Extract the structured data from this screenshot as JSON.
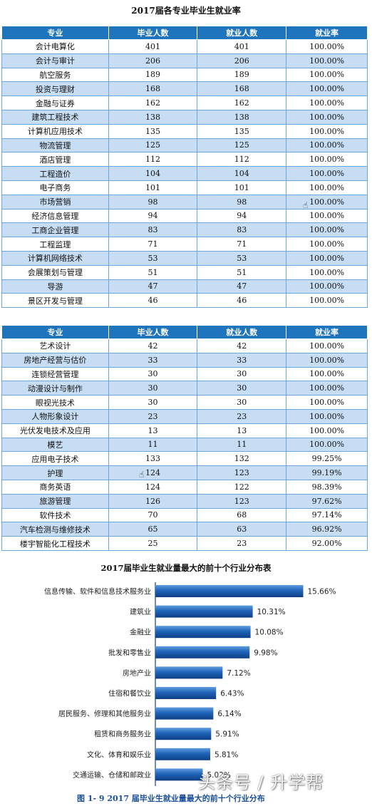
{
  "table1": {
    "title": "2017届各专业毕业生就业率",
    "headers": [
      "专业",
      "毕业人数",
      "就业人数",
      "就业率"
    ],
    "rows": [
      [
        "会计电算化",
        "401",
        "401",
        "100.00%"
      ],
      [
        "会计与审计",
        "206",
        "206",
        "100.00%"
      ],
      [
        "航空服务",
        "189",
        "189",
        "100.00%"
      ],
      [
        "投资与理财",
        "168",
        "168",
        "100.00%"
      ],
      [
        "金融与证券",
        "162",
        "162",
        "100.00%"
      ],
      [
        "建筑工程技术",
        "138",
        "138",
        "100.00%"
      ],
      [
        "计算机应用技术",
        "135",
        "135",
        "100.00%"
      ],
      [
        "物流管理",
        "125",
        "125",
        "100.00%"
      ],
      [
        "酒店管理",
        "112",
        "112",
        "100.00%"
      ],
      [
        "工程造价",
        "104",
        "104",
        "100.00%"
      ],
      [
        "电子商务",
        "101",
        "101",
        "100.00%"
      ],
      [
        "市场营销",
        "98",
        "98",
        "100.00%"
      ],
      [
        "经济信息管理",
        "94",
        "94",
        "100.00%"
      ],
      [
        "工商企业管理",
        "83",
        "83",
        "100.00%"
      ],
      [
        "工程监理",
        "71",
        "71",
        "100.00%"
      ],
      [
        "计算机网络技术",
        "53",
        "53",
        "100.00%"
      ],
      [
        "会展策划与管理",
        "51",
        "51",
        "100.00%"
      ],
      [
        "导游",
        "47",
        "47",
        "100.00%"
      ],
      [
        "景区开发与管理",
        "46",
        "46",
        "100.00%"
      ]
    ]
  },
  "table2": {
    "headers": [
      "专业",
      "毕业人数",
      "就业人数",
      "就业率"
    ],
    "rows": [
      [
        "艺术设计",
        "42",
        "42",
        "100.00%"
      ],
      [
        "房地产经营与估价",
        "33",
        "33",
        "100.00%"
      ],
      [
        "连锁经营管理",
        "30",
        "30",
        "100.00%"
      ],
      [
        "动漫设计与制作",
        "30",
        "30",
        "100.00%"
      ],
      [
        "眼视光技术",
        "30",
        "30",
        "100.00%"
      ],
      [
        "人物形象设计",
        "23",
        "23",
        "100.00%"
      ],
      [
        "光伏发电技术及应用",
        "13",
        "13",
        "100.00%"
      ],
      [
        "模艺",
        "11",
        "11",
        "100.00%"
      ],
      [
        "应用电子技术",
        "133",
        "132",
        "99.25%"
      ],
      [
        "护理",
        "124",
        "123",
        "99.19%"
      ],
      [
        "商务英语",
        "124",
        "122",
        "98.39%"
      ],
      [
        "旅游管理",
        "126",
        "123",
        "97.62%"
      ],
      [
        "软件技术",
        "70",
        "68",
        "97.14%"
      ],
      [
        "汽车检测与维修技术",
        "65",
        "63",
        "96.92%"
      ],
      [
        "楼宇智能化工程技术",
        "25",
        "23",
        "92.00%"
      ]
    ]
  },
  "chart_data": {
    "type": "bar",
    "orientation": "horizontal",
    "title": "2017届毕业生就业量最大的前十个行业分布表",
    "caption": "图 1- 9   2017 届毕业生就业量最大的前十个行业分布",
    "categories": [
      "信息传输、软件和信息技术服务业",
      "建筑业",
      "金融业",
      "批发和零售业",
      "房地产业",
      "住宿和餐饮业",
      "居民服务、修理和其他服务业",
      "租赁和商务服务业",
      "文化、体育和娱乐业",
      "交通运输、仓储和邮政业"
    ],
    "values": [
      15.66,
      10.31,
      10.08,
      9.98,
      7.12,
      6.43,
      6.14,
      5.91,
      5.81,
      5.02
    ],
    "value_labels": [
      "15.66%",
      "10.31%",
      "10.08%",
      "9.98%",
      "7.12%",
      "6.43%",
      "6.14%",
      "5.91%",
      "5.81%",
      "5.02%"
    ],
    "xlim": [
      0,
      16
    ],
    "bar_color": "#1f63b8"
  },
  "watermark": "头条号 / 升学帮"
}
